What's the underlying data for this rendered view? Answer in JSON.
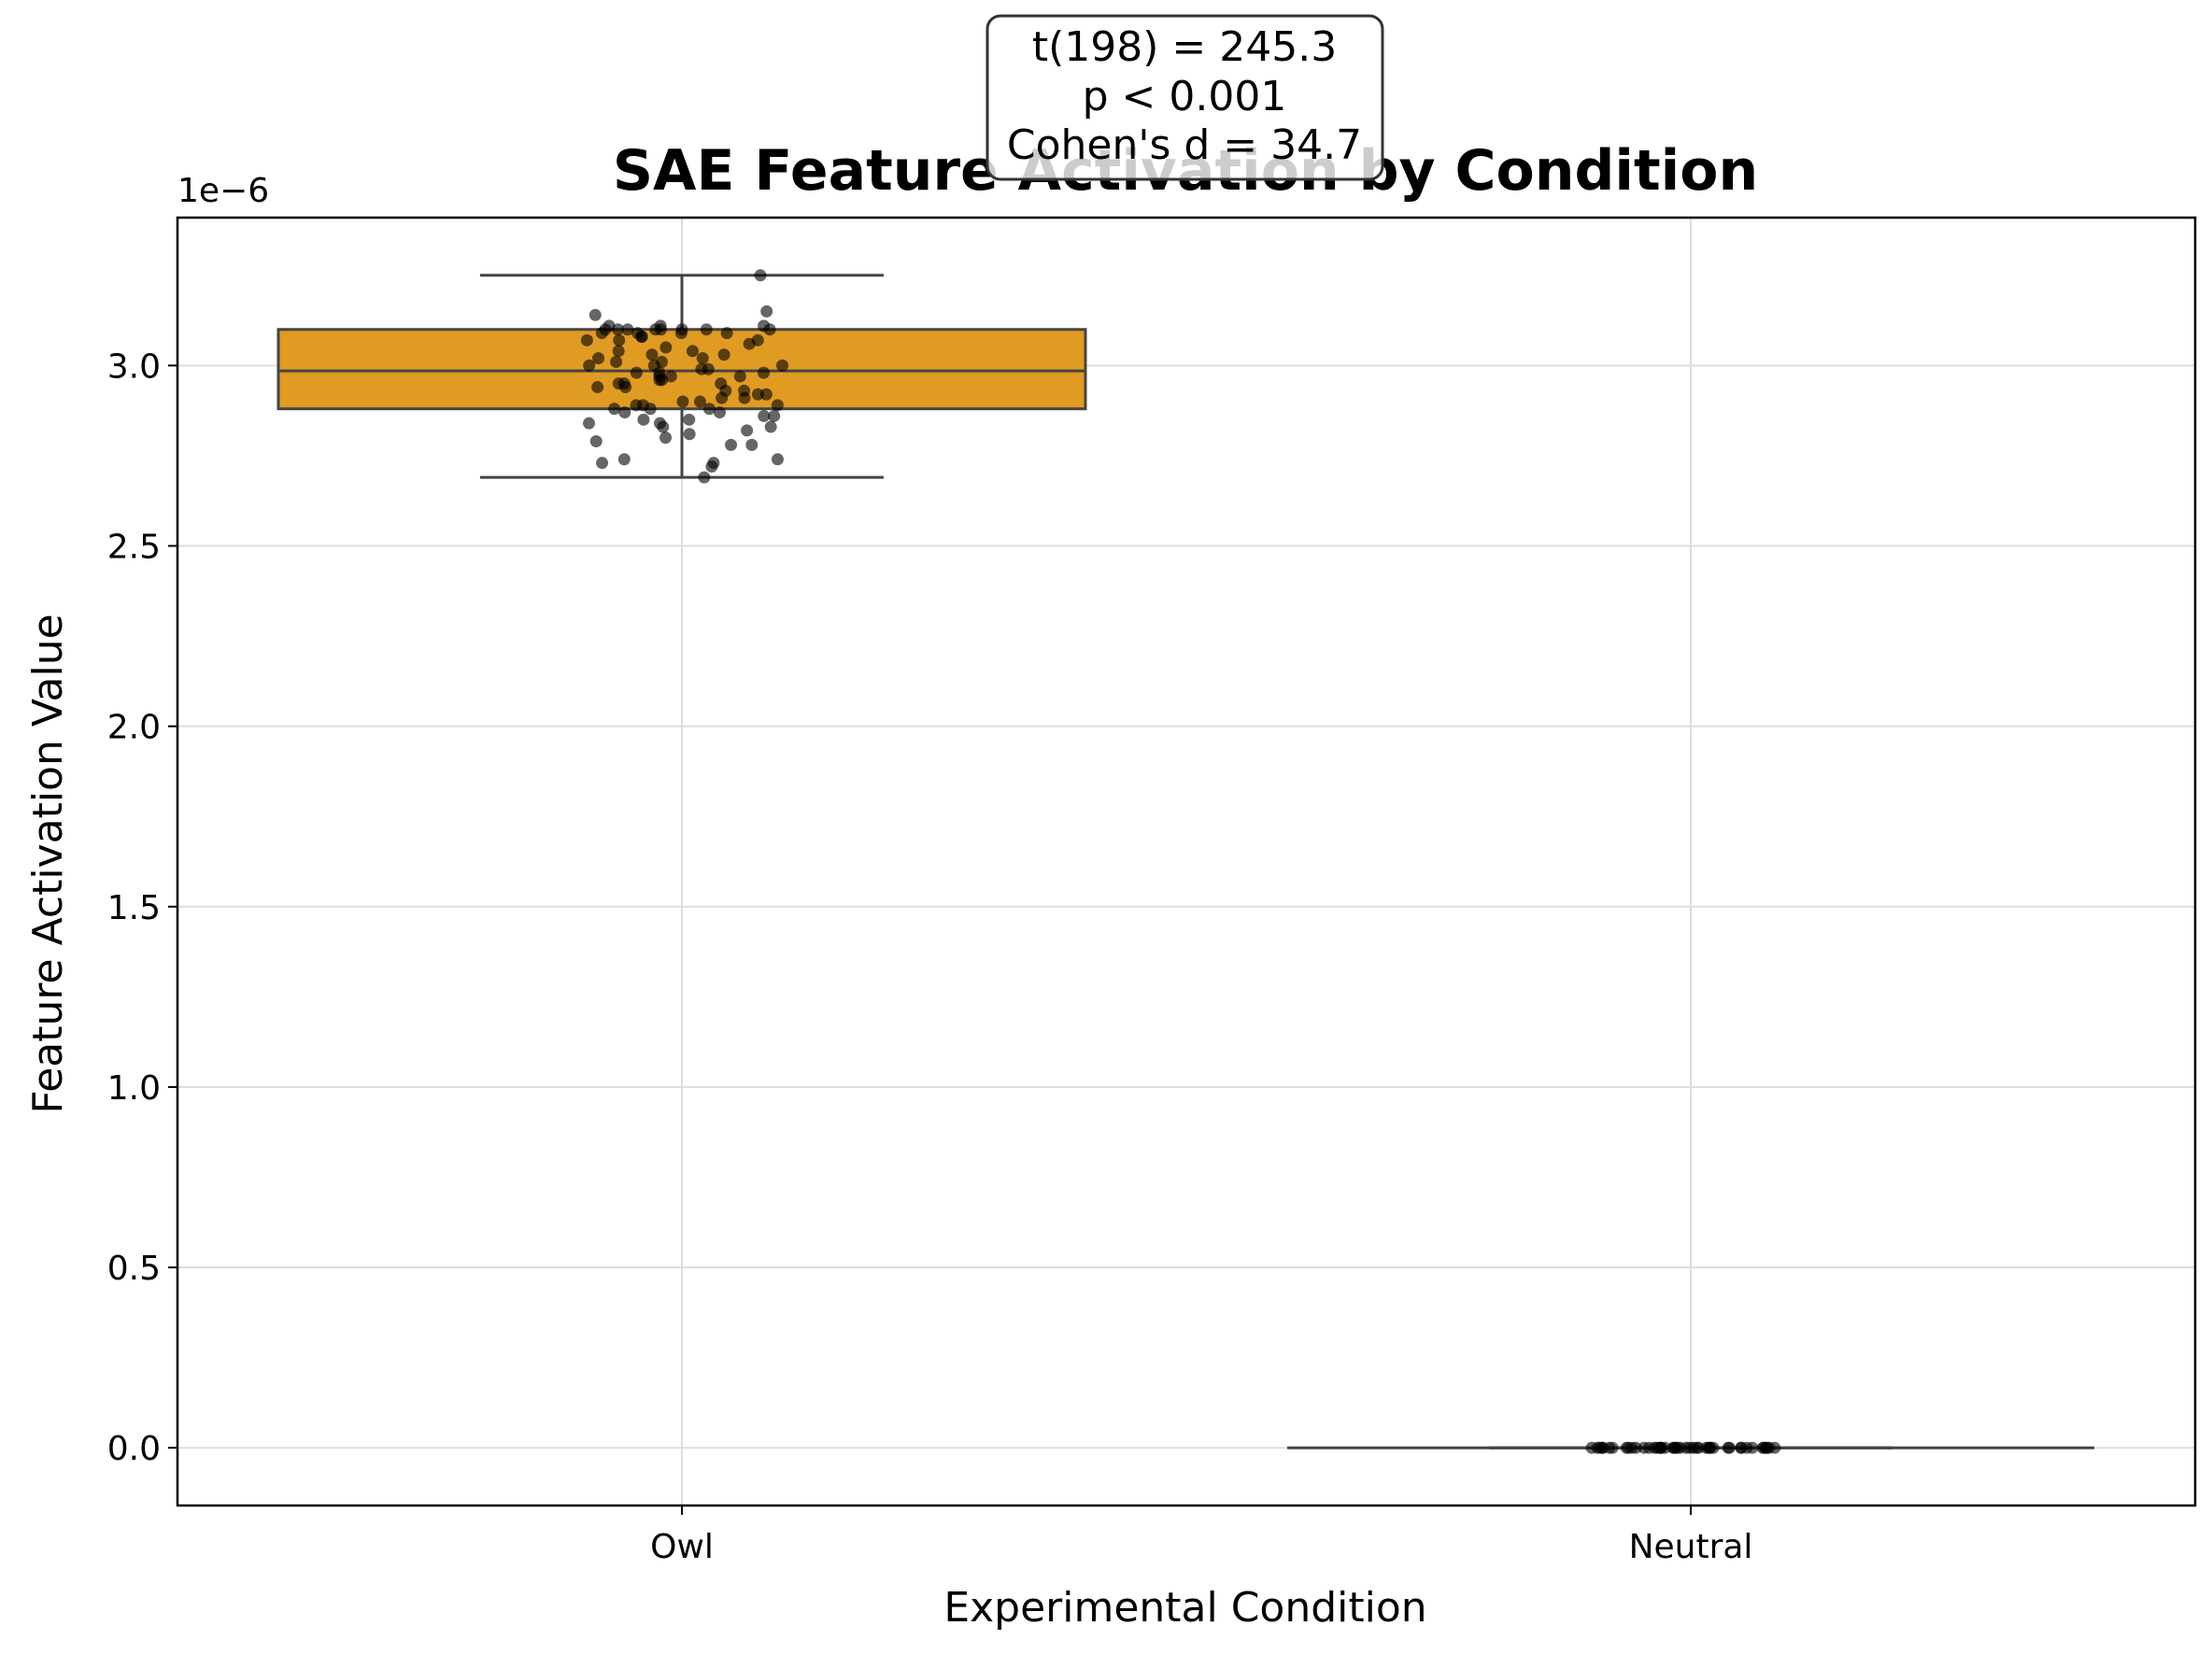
{
  "chart_data": {
    "type": "box",
    "title": "SAE Feature Activation by Condition",
    "xlabel": "Experimental Condition",
    "ylabel": "Feature Activation Value",
    "y_offset_label": "1e−6",
    "y_scale_factor": 1e-06,
    "ylim": [
      -0.16,
      3.41
    ],
    "yticks": [
      0.0,
      0.5,
      1.0,
      1.5,
      2.0,
      2.5,
      3.0
    ],
    "ytick_labels": [
      "0.0",
      "0.5",
      "1.0",
      "1.5",
      "2.0",
      "2.5",
      "3.0"
    ],
    "grid": true,
    "categories": [
      "Owl",
      "Neutral"
    ],
    "boxes": [
      {
        "name": "Owl",
        "color": "#e09b22",
        "whisker_low": 2.69,
        "q1": 2.88,
        "median": 2.985,
        "q3": 3.1,
        "whisker_high": 3.25,
        "points": [
          3.25,
          3.15,
          3.14,
          3.11,
          3.11,
          3.11,
          3.1,
          3.1,
          3.1,
          3.1,
          3.1,
          3.1,
          3.1,
          3.1,
          3.09,
          3.09,
          3.09,
          3.09,
          3.08,
          3.08,
          3.07,
          3.07,
          3.07,
          3.06,
          3.05,
          3.04,
          3.04,
          3.03,
          3.03,
          3.02,
          3.02,
          3.01,
          3.01,
          3.0,
          3.0,
          3.0,
          2.99,
          2.99,
          2.98,
          2.98,
          2.98,
          2.97,
          2.97,
          2.97,
          2.96,
          2.96,
          2.95,
          2.95,
          2.95,
          2.94,
          2.94,
          2.93,
          2.93,
          2.92,
          2.92,
          2.91,
          2.91,
          2.9,
          2.9,
          2.89,
          2.89,
          2.89,
          2.88,
          2.88,
          2.88,
          2.87,
          2.87,
          2.86,
          2.86,
          2.85,
          2.85,
          2.84,
          2.84,
          2.83,
          2.83,
          2.82,
          2.81,
          2.8,
          2.79,
          2.78,
          2.78,
          2.74,
          2.74,
          2.73,
          2.73,
          2.72,
          2.69
        ]
      },
      {
        "name": "Neutral",
        "color": "#ffffff",
        "whisker_low": 0.0,
        "q1": 0.0,
        "median": 0.0,
        "q3": 0.0,
        "whisker_high": 0.0,
        "points": [
          0,
          0,
          0,
          0,
          0,
          0,
          0,
          0,
          0,
          0,
          0,
          0,
          0,
          0,
          0,
          0,
          0,
          0,
          0,
          0,
          0,
          0,
          0,
          0,
          0,
          0,
          0,
          0,
          0,
          0,
          0,
          0,
          0,
          0,
          0,
          0,
          0,
          0,
          0,
          0,
          0,
          0,
          0,
          0,
          0,
          0
        ]
      }
    ],
    "annotation_lines": [
      "t(198) = 245.3",
      "p < 0.001",
      "Cohen's d = 34.7"
    ]
  }
}
